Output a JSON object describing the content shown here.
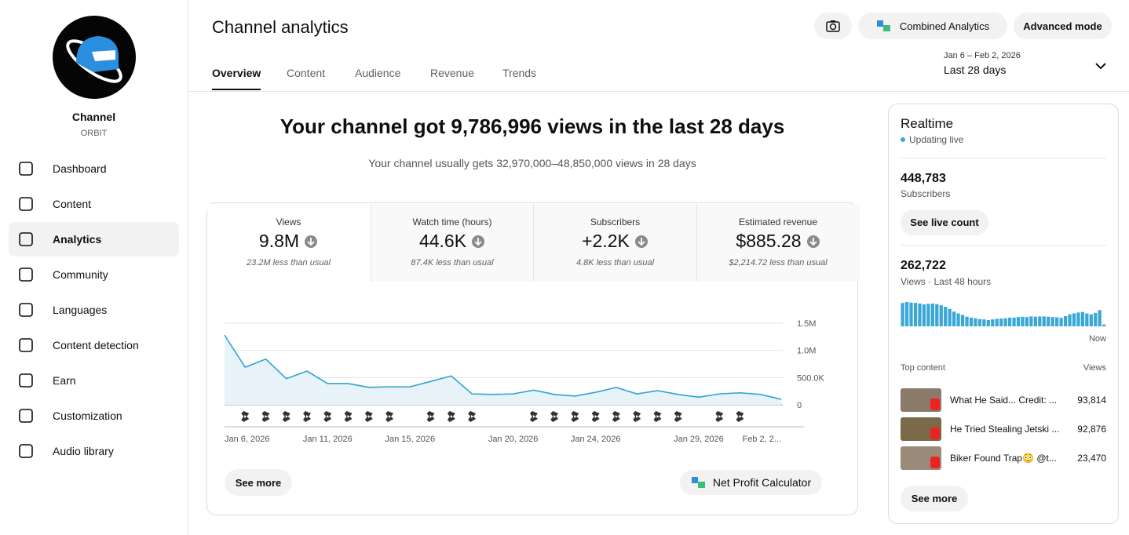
{
  "sidebar": {
    "channel_name": "Channel",
    "channel_handle": "ORBIT",
    "nav": [
      {
        "label": "Dashboard"
      },
      {
        "label": "Content"
      },
      {
        "label": "Analytics",
        "selected": true
      },
      {
        "label": "Community"
      },
      {
        "label": "Languages"
      },
      {
        "label": "Content detection"
      },
      {
        "label": "Earn"
      },
      {
        "label": "Customization"
      },
      {
        "label": "Audio library"
      }
    ]
  },
  "header": {
    "title": "Channel analytics",
    "buttons": [
      "Combined Analytics",
      "Advanced mode"
    ],
    "tabs": [
      {
        "label": "Overview",
        "selected": true
      },
      {
        "label": "Content"
      },
      {
        "label": "Audience"
      },
      {
        "label": "Revenue"
      },
      {
        "label": "Trends"
      }
    ],
    "date_range": "Jan 6 – Feb 2, 2026",
    "period": "Last 28 days"
  },
  "summary": {
    "headline": "Your channel got 9,786,996 views in the last 28 days",
    "subline": "Your channel usually gets 32,970,000–48,850,000 views in 28 days"
  },
  "metrics": [
    {
      "label": "Views",
      "value": "9.8M",
      "note": "23.2M less than usual"
    },
    {
      "label": "Watch time (hours)",
      "value": "44.6K",
      "note": "87.4K less than usual"
    },
    {
      "label": "Subscribers",
      "value": "+2.2K",
      "note": "4.8K less than usual"
    },
    {
      "label": "Estimated revenue",
      "value": "$885.28",
      "note": "$2,214.72 less than usual"
    }
  ],
  "chart_data": [
    {
      "type": "line",
      "categories": [
        "Jan 6, 2026",
        null,
        null,
        null,
        null,
        "Jan 11, 2026",
        null,
        null,
        null,
        "Jan 15, 2026",
        null,
        null,
        null,
        null,
        "Jan 20, 2026",
        null,
        null,
        null,
        "Jan 24, 2026",
        null,
        null,
        null,
        null,
        "Jan 29, 2026",
        null,
        null,
        null,
        "Feb 2, 2..."
      ],
      "values": [
        1280000,
        690000,
        840000,
        480000,
        620000,
        390000,
        390000,
        320000,
        330000,
        330000,
        430000,
        530000,
        200000,
        190000,
        200000,
        270000,
        190000,
        160000,
        230000,
        320000,
        200000,
        260000,
        190000,
        140000,
        200000,
        220000,
        190000,
        100000
      ],
      "color": "#2ea3d2",
      "ylim": [
        0,
        1500000
      ],
      "yticks": [
        0,
        {
          "value": 500000,
          "label": "500.0K"
        },
        {
          "value": 1000000,
          "label": "1.0M"
        },
        {
          "value": 1500000,
          "label": "1.5M"
        }
      ],
      "grid": true
    },
    {
      "type": "bar",
      "values": [
        7800,
        8100,
        7900,
        7800,
        7600,
        7300,
        7500,
        7600,
        7400,
        7000,
        6500,
        5800,
        4900,
        4300,
        3800,
        3200,
        2900,
        2700,
        2400,
        2300,
        2100,
        2300,
        2500,
        2600,
        2700,
        2900,
        2900,
        3100,
        3200,
        3100,
        3300,
        3200,
        3300,
        3300,
        3200,
        3100,
        3000,
        2800,
        3400,
        4000,
        4300,
        4600,
        4800,
        4300,
        4000,
        4500,
        5400,
        600
      ],
      "color": "#3aa7d6"
    }
  ],
  "chart_buttons": [
    "See more",
    "Net Profit Calculator"
  ],
  "realtime": {
    "title": "Realtime",
    "status": "Updating live",
    "subscribers": "448,783",
    "subscribers_label": "Subscribers",
    "live_button": "See live count",
    "views": "262,722",
    "views_label": "Views · Last 48 hours",
    "now_label": "Now",
    "top_content_label": "Top content",
    "views_column": "Views",
    "top_content": [
      {
        "title": "What He Said... Credit: ...",
        "views": "93,814"
      },
      {
        "title": "He Tried Stealing Jetski ...",
        "views": "92,876"
      },
      {
        "title": "Biker Found Trap😳 @t...",
        "views": "23,470"
      }
    ],
    "see_more": "See more"
  }
}
